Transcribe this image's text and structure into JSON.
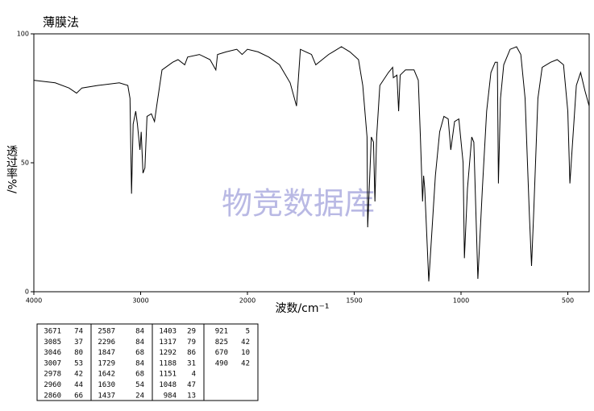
{
  "chart_data": {
    "type": "line",
    "title": "薄膜法",
    "watermark": "物竞数据库",
    "x_label": "波数/cm⁻¹",
    "y_label": "透过率%/",
    "xlim": [
      4000,
      400
    ],
    "xscale": {
      "break": 2000,
      "ratio": 2
    },
    "xticks": [
      4000,
      3000,
      2000,
      1500,
      1000,
      500
    ],
    "ylim": [
      0,
      100
    ],
    "yticks": [
      0,
      50,
      100
    ],
    "color": "#000000",
    "x": [
      4000,
      3800,
      3671,
      3600,
      3550,
      3400,
      3200,
      3120,
      3100,
      3085,
      3070,
      3046,
      3030,
      3007,
      2995,
      2978,
      2960,
      2940,
      2900,
      2870,
      2850,
      2800,
      2700,
      2650,
      2587,
      2560,
      2450,
      2400,
      2350,
      2296,
      2280,
      2200,
      2100,
      2050,
      2000,
      1950,
      1900,
      1850,
      1800,
      1770,
      1752,
      1700,
      1680,
      1650,
      1620,
      1600,
      1560,
      1520,
      1480,
      1460,
      1440,
      1437,
      1420,
      1410,
      1403,
      1395,
      1380,
      1340,
      1320,
      1317,
      1300,
      1292,
      1285,
      1260,
      1220,
      1200,
      1190,
      1180,
      1175,
      1170,
      1151,
      1120,
      1100,
      1080,
      1060,
      1048,
      1030,
      1010,
      990,
      984,
      970,
      950,
      940,
      921,
      900,
      880,
      860,
      840,
      830,
      825,
      815,
      800,
      770,
      740,
      720,
      700,
      680,
      670,
      660,
      640,
      620,
      580,
      550,
      520,
      500,
      490,
      480,
      460,
      440,
      420,
      400
    ],
    "values": [
      82,
      81,
      79,
      77,
      79,
      80,
      81,
      80,
      75,
      38,
      65,
      70,
      65,
      55,
      62,
      46,
      48,
      68,
      69,
      66,
      72,
      86,
      89,
      90,
      88,
      91,
      92,
      91,
      90,
      86,
      92,
      93,
      94,
      92,
      94,
      93,
      91,
      88,
      81,
      72,
      94,
      92,
      88,
      90,
      92,
      93,
      95,
      93,
      90,
      80,
      60,
      25,
      60,
      58,
      35,
      60,
      80,
      85,
      87,
      83,
      84,
      70,
      84,
      86,
      86,
      82,
      60,
      35,
      45,
      40,
      4,
      45,
      62,
      68,
      67,
      55,
      66,
      67,
      50,
      13,
      40,
      60,
      58,
      5,
      40,
      70,
      85,
      89,
      89,
      42,
      75,
      88,
      94,
      95,
      92,
      75,
      30,
      10,
      30,
      75,
      87,
      89,
      90,
      88,
      70,
      42,
      55,
      80,
      85,
      78,
      72
    ]
  },
  "peak_table": [
    [
      [
        3671,
        74
      ],
      [
        3085,
        37
      ],
      [
        3046,
        80
      ],
      [
        3007,
        53
      ],
      [
        2978,
        42
      ],
      [
        2960,
        44
      ],
      [
        2860,
        66
      ]
    ],
    [
      [
        2587,
        84
      ],
      [
        2296,
        84
      ],
      [
        1847,
        68
      ],
      [
        1729,
        84
      ],
      [
        1642,
        68
      ],
      [
        1630,
        54
      ],
      [
        1437,
        24
      ]
    ],
    [
      [
        1403,
        29
      ],
      [
        1317,
        79
      ],
      [
        1292,
        86
      ],
      [
        1188,
        31
      ],
      [
        1151,
        4
      ],
      [
        1048,
        47
      ],
      [
        984,
        13
      ]
    ],
    [
      [
        921,
        5
      ],
      [
        825,
        42
      ],
      [
        670,
        10
      ],
      [
        490,
        42
      ]
    ]
  ]
}
